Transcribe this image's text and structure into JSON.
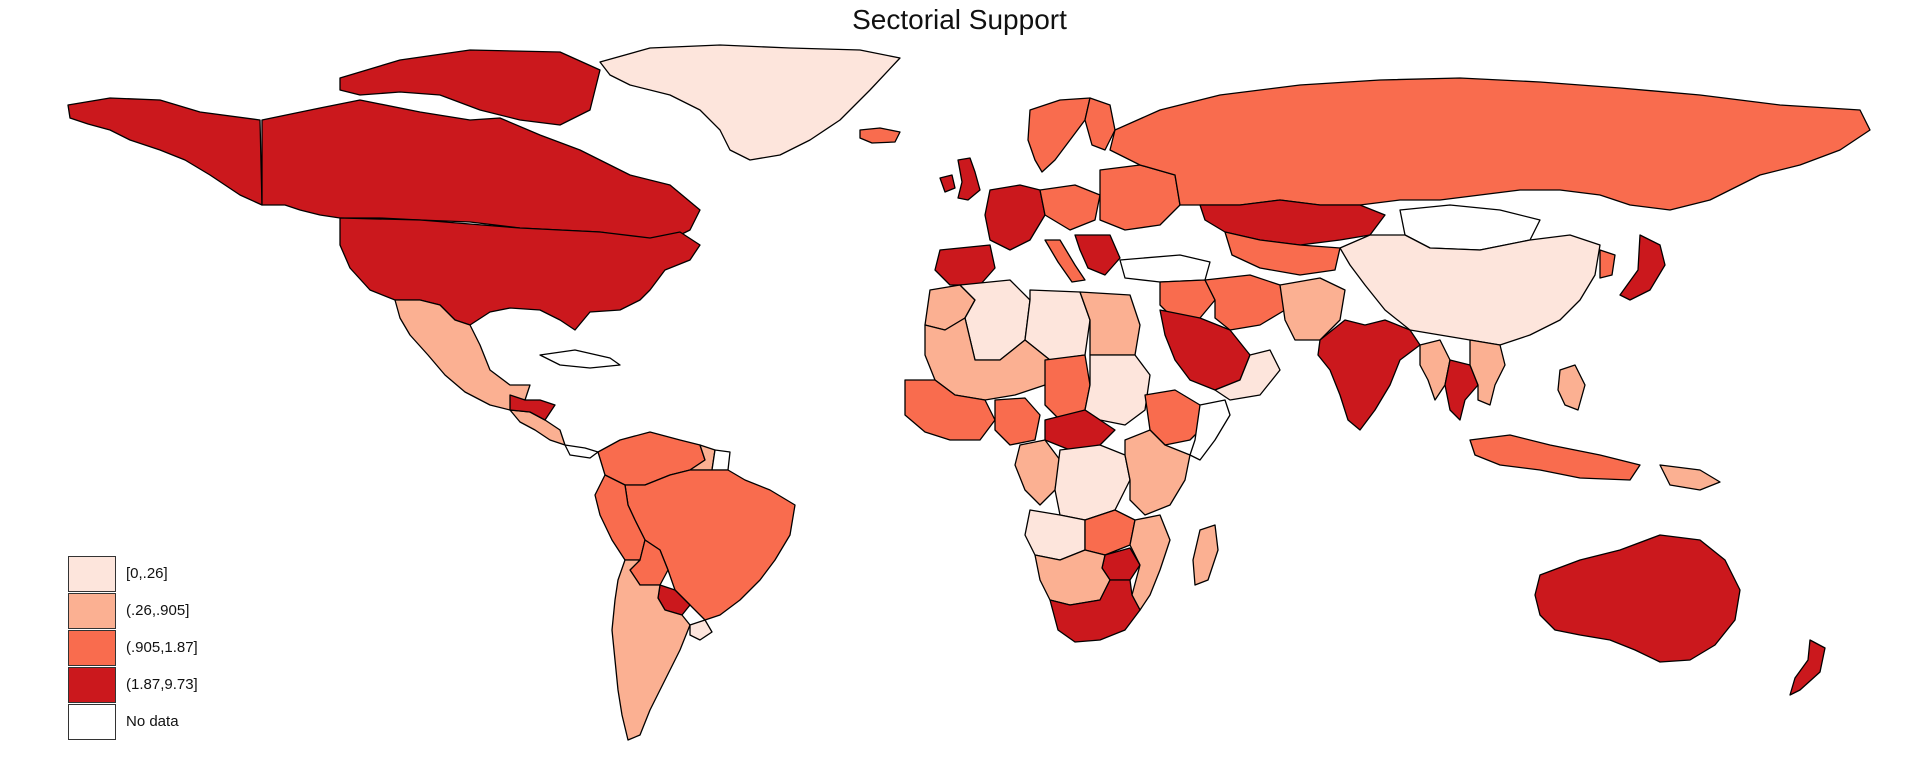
{
  "title": "Sectorial Support",
  "legend": {
    "items": [
      {
        "label": "[0,.26]",
        "color": "#fde5dc"
      },
      {
        "label": "(.26,.905]",
        "color": "#fbb092"
      },
      {
        "label": "(.905,1.87]",
        "color": "#f96c4e"
      },
      {
        "label": "(1.87,9.73]",
        "color": "#cb181d"
      },
      {
        "label": "No data",
        "color": "#ffffff"
      }
    ]
  },
  "regions": [
    {
      "name": "Alaska",
      "class": 3
    },
    {
      "name": "Canada",
      "class": 3
    },
    {
      "name": "Canadian Arctic Islands",
      "class": 3
    },
    {
      "name": "United States",
      "class": 3
    },
    {
      "name": "Greenland",
      "class": 0
    },
    {
      "name": "Iceland",
      "class": 2
    },
    {
      "name": "Mexico",
      "class": 1
    },
    {
      "name": "Cuba",
      "class": 4
    },
    {
      "name": "Central America",
      "class": 1
    },
    {
      "name": "Guatemala/Honduras",
      "class": 3
    },
    {
      "name": "Panama",
      "class": 4
    },
    {
      "name": "Colombia/Venezuela",
      "class": 2
    },
    {
      "name": "Guyana",
      "class": 1
    },
    {
      "name": "Suriname",
      "class": 4
    },
    {
      "name": "Brazil",
      "class": 2
    },
    {
      "name": "Peru/Ecuador",
      "class": 2
    },
    {
      "name": "Bolivia",
      "class": 2
    },
    {
      "name": "Paraguay",
      "class": 3
    },
    {
      "name": "Chile/Argentina",
      "class": 1
    },
    {
      "name": "Uruguay",
      "class": 0
    },
    {
      "name": "United Kingdom",
      "class": 3
    },
    {
      "name": "Ireland",
      "class": 3
    },
    {
      "name": "Scandinavia",
      "class": 2
    },
    {
      "name": "Finland",
      "class": 2
    },
    {
      "name": "Western Europe",
      "class": 3
    },
    {
      "name": "Central Europe",
      "class": 2
    },
    {
      "name": "Iberia",
      "class": 3
    },
    {
      "name": "Italy",
      "class": 2
    },
    {
      "name": "Balkans",
      "class": 3
    },
    {
      "name": "Eastern Europe",
      "class": 2
    },
    {
      "name": "Turkey",
      "class": 4
    },
    {
      "name": "Russia",
      "class": 2
    },
    {
      "name": "Kazakhstan",
      "class": 3
    },
    {
      "name": "Mongolia",
      "class": 4
    },
    {
      "name": "China",
      "class": 0
    },
    {
      "name": "Japan",
      "class": 3
    },
    {
      "name": "Korea",
      "class": 2
    },
    {
      "name": "Central Asia",
      "class": 2
    },
    {
      "name": "Iran",
      "class": 2
    },
    {
      "name": "Iraq/Syria",
      "class": 2
    },
    {
      "name": "Afghanistan/Pakistan",
      "class": 1
    },
    {
      "name": "Saudi Arabia",
      "class": 3
    },
    {
      "name": "Yemen/Oman",
      "class": 0
    },
    {
      "name": "India",
      "class": 3
    },
    {
      "name": "Myanmar",
      "class": 1
    },
    {
      "name": "Thailand",
      "class": 3
    },
    {
      "name": "Vietnam/Cambodia",
      "class": 1
    },
    {
      "name": "Philippines",
      "class": 1
    },
    {
      "name": "Indonesia",
      "class": 2
    },
    {
      "name": "Papua New Guinea",
      "class": 1
    },
    {
      "name": "Australia",
      "class": 3
    },
    {
      "name": "New Zealand",
      "class": 3
    },
    {
      "name": "Morocco",
      "class": 1
    },
    {
      "name": "Algeria",
      "class": 0
    },
    {
      "name": "Libya",
      "class": 0
    },
    {
      "name": "Egypt",
      "class": 1
    },
    {
      "name": "Mali/Niger",
      "class": 1
    },
    {
      "name": "West Africa",
      "class": 2
    },
    {
      "name": "Nigeria",
      "class": 2
    },
    {
      "name": "Chad",
      "class": 2
    },
    {
      "name": "Sudan",
      "class": 0
    },
    {
      "name": "Ethiopia",
      "class": 2
    },
    {
      "name": "Somalia",
      "class": 4
    },
    {
      "name": "Central African Republic",
      "class": 3
    },
    {
      "name": "Congo Basin",
      "class": 1
    },
    {
      "name": "DR Congo",
      "class": 0
    },
    {
      "name": "East Africa",
      "class": 1
    },
    {
      "name": "Angola",
      "class": 0
    },
    {
      "name": "Zambia",
      "class": 2
    },
    {
      "name": "Zimbabwe",
      "class": 3
    },
    {
      "name": "Mozambique",
      "class": 1
    },
    {
      "name": "Namibia/Botswana",
      "class": 1
    },
    {
      "name": "South Africa",
      "class": 3
    },
    {
      "name": "Madagascar",
      "class": 1
    }
  ]
}
